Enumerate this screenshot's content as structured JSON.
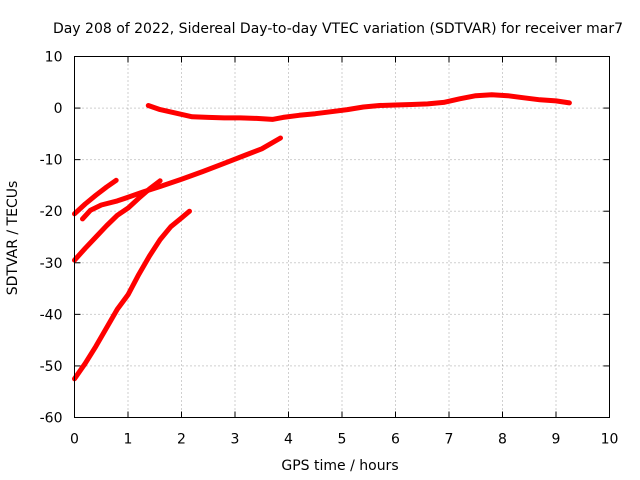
{
  "chart_data": {
    "type": "line",
    "title": "Day 208 of 2022, Sidereal Day-to-day VTEC variation (SDTVAR) for receiver mar7",
    "xlabel": "GPS time / hours",
    "ylabel": "SDTVAR / TECUs",
    "xlim": [
      0,
      10
    ],
    "ylim": [
      -60,
      10
    ],
    "xticks": [
      "0",
      "1",
      "2",
      "3",
      "4",
      "5",
      "6",
      "7",
      "8",
      "9",
      "10"
    ],
    "yticks": [
      "10",
      "0",
      "-10",
      "-20",
      "-30",
      "-40",
      "-50",
      "-60"
    ],
    "grid": true,
    "legend": "none",
    "color": "#ff0000",
    "series": [
      {
        "points": [
          [
            1.38,
            0.5
          ],
          [
            1.6,
            -0.3
          ],
          [
            1.9,
            -1.0
          ],
          [
            2.2,
            -1.7
          ],
          [
            2.5,
            -1.8
          ],
          [
            2.8,
            -1.9
          ],
          [
            3.1,
            -1.9
          ],
          [
            3.4,
            -2.0
          ],
          [
            3.7,
            -2.2
          ],
          [
            3.9,
            -1.8
          ],
          [
            4.2,
            -1.4
          ],
          [
            4.5,
            -1.1
          ],
          [
            4.8,
            -0.7
          ],
          [
            5.1,
            -0.3
          ],
          [
            5.4,
            0.2
          ],
          [
            5.7,
            0.5
          ],
          [
            6.0,
            0.6
          ],
          [
            6.3,
            0.7
          ],
          [
            6.6,
            0.8
          ],
          [
            6.9,
            1.1
          ],
          [
            7.2,
            1.8
          ],
          [
            7.5,
            2.4
          ],
          [
            7.8,
            2.6
          ],
          [
            8.1,
            2.4
          ],
          [
            8.4,
            2.0
          ],
          [
            8.7,
            1.6
          ],
          [
            9.0,
            1.4
          ],
          [
            9.25,
            1.0
          ]
        ]
      },
      {
        "points": [
          [
            0.15,
            -21.5
          ],
          [
            0.3,
            -19.8
          ],
          [
            0.5,
            -18.8
          ],
          [
            0.8,
            -18.0
          ],
          [
            1.0,
            -17.3
          ],
          [
            1.3,
            -16.2
          ],
          [
            1.6,
            -15.2
          ],
          [
            2.0,
            -13.8
          ],
          [
            2.4,
            -12.3
          ],
          [
            2.8,
            -10.7
          ],
          [
            3.2,
            -9.1
          ],
          [
            3.5,
            -7.9
          ],
          [
            3.85,
            -5.8
          ]
        ]
      },
      {
        "points": [
          [
            0.0,
            -20.5
          ],
          [
            0.2,
            -18.6
          ],
          [
            0.4,
            -16.9
          ],
          [
            0.6,
            -15.3
          ],
          [
            0.78,
            -14.0
          ]
        ]
      },
      {
        "points": [
          [
            0.0,
            -29.5
          ],
          [
            0.2,
            -27.2
          ],
          [
            0.4,
            -25.0
          ],
          [
            0.6,
            -22.8
          ],
          [
            0.8,
            -20.8
          ],
          [
            1.0,
            -19.4
          ],
          [
            1.2,
            -17.5
          ],
          [
            1.4,
            -15.7
          ],
          [
            1.6,
            -14.1
          ]
        ]
      },
      {
        "points": [
          [
            0.0,
            -52.5
          ],
          [
            0.2,
            -49.5
          ],
          [
            0.4,
            -46.2
          ],
          [
            0.6,
            -42.6
          ],
          [
            0.8,
            -39.0
          ],
          [
            1.0,
            -36.2
          ],
          [
            1.2,
            -32.3
          ],
          [
            1.4,
            -28.7
          ],
          [
            1.6,
            -25.5
          ],
          [
            1.8,
            -23.0
          ],
          [
            2.0,
            -21.3
          ],
          [
            2.15,
            -20.0
          ]
        ]
      }
    ]
  }
}
